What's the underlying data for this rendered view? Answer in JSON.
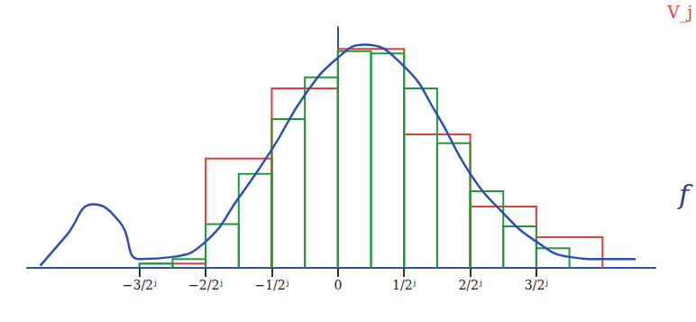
{
  "chart_data": {
    "type": "line",
    "annotations": [
      "f",
      "V_j"
    ],
    "xlim": [
      -4.7,
      4.8
    ],
    "xticks": [
      {
        "value": -3,
        "label": "−3/2ʲ"
      },
      {
        "value": -2,
        "label": "−2/2ʲ"
      },
      {
        "value": -1,
        "label": "−1/2ʲ"
      },
      0,
      {
        "value": 1,
        "label": "1/2ʲ"
      },
      {
        "value": 2,
        "label": "2/2ʲ"
      },
      {
        "value": 3,
        "label": "3/2ʲ"
      }
    ],
    "ylim": [
      0,
      11
    ],
    "tick_labels": "x",
    "grid": false,
    "series": [
      {
        "type": "histogram",
        "color": "#e0403a",
        "bins": [
          -3,
          -2,
          -1,
          0,
          1,
          2,
          3,
          4
        ],
        "values": [
          0.2,
          5.0,
          8.2,
          10.0,
          6.1,
          2.8,
          1.4
        ]
      },
      {
        "type": "histogram",
        "color": "#1f9a3a",
        "bins": [
          -3,
          -2.5,
          -2,
          -1.5,
          -1,
          -0.5,
          0,
          0.5,
          1,
          1.5,
          2,
          2.5,
          3,
          3.5
        ],
        "values": [
          0.2,
          0.4,
          2.0,
          4.3,
          6.8,
          8.7,
          9.9,
          9.8,
          8.2,
          5.7,
          3.5,
          1.9,
          0.9
        ]
      },
      {
        "type": "line",
        "color": "#2b4fb5",
        "x": [
          -4.5,
          -4.1,
          -3.7,
          -3.3,
          -3.0,
          -2.5,
          -2.0,
          -1.5,
          -1.0,
          -0.5,
          0.0,
          0.4,
          1.0,
          1.5,
          2.0,
          2.5,
          3.0,
          3.5,
          4.0,
          4.5
        ],
        "values": [
          0.1,
          1.5,
          2.9,
          2.1,
          0.4,
          0.5,
          1.2,
          3.2,
          5.4,
          7.9,
          9.6,
          10.2,
          9.2,
          7.0,
          4.3,
          2.5,
          1.2,
          0.5,
          0.4,
          0.4
        ]
      }
    ]
  }
}
